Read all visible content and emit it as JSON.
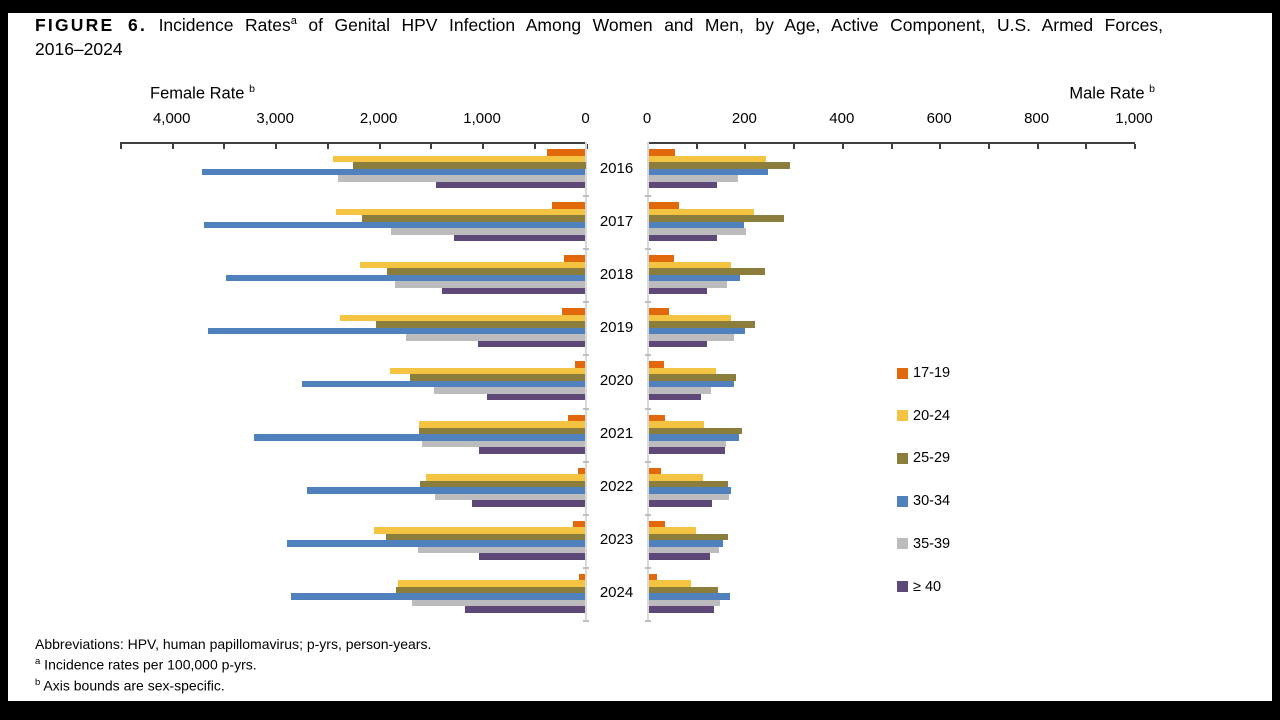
{
  "title": {
    "figure_label": "FIGURE 6.",
    "lead": " Incidence Rates",
    "sup_a": "a",
    "rest": " of Genital HPV Infection Among Women and Men, by Age, Active Component, U.S. Armed Forces,",
    "line2": "2016–2024"
  },
  "axes": {
    "female": {
      "label": "Female Rate",
      "sup": "b",
      "max": 4500,
      "tick_step": 500,
      "tick_labels": [
        "4,000",
        "3,000",
        "2,000",
        "1,000",
        "0"
      ],
      "tick_values": [
        4000,
        3000,
        2000,
        1000,
        0
      ]
    },
    "male": {
      "label": "Male Rate",
      "sup": "b",
      "max": 1000,
      "tick_step": 100,
      "tick_labels": [
        "0",
        "200",
        "400",
        "600",
        "800",
        "1,000"
      ],
      "tick_values": [
        0,
        200,
        400,
        600,
        800,
        1000
      ]
    }
  },
  "legend": {
    "items": [
      {
        "label": "17-19",
        "color": "#E2690B"
      },
      {
        "label": "20-24",
        "color": "#F5C342"
      },
      {
        "label": "25-29",
        "color": "#8B7D3B"
      },
      {
        "label": "30-34",
        "color": "#5081BD"
      },
      {
        "label": "35-39",
        "color": "#BCBCBE"
      },
      {
        "label": "≥ 40",
        "color": "#5D4877"
      }
    ]
  },
  "footnotes": {
    "abbreviations": "Abbreviations: HPV, human papillomavirus; p-yrs, person-years.",
    "note_a_marker": "a",
    "note_a": " Incidence rates per 100,000 p-yrs.",
    "note_b_marker": "b",
    "note_b": " Axis bounds are sex-specific."
  },
  "chart_data": {
    "type": "bar",
    "orientation": "horizontal-diverging",
    "title": "Incidence Rates of Genital HPV Infection Among Women and Men, by Age, Active Component, U.S. Armed Forces, 2016–2024",
    "units": "incidence rate per 100,000 p-yrs",
    "years": [
      "2016",
      "2017",
      "2018",
      "2019",
      "2020",
      "2021",
      "2022",
      "2023",
      "2024"
    ],
    "age_groups": [
      "17-19",
      "20-24",
      "25-29",
      "30-34",
      "35-39",
      "≥ 40"
    ],
    "legend_position": "right",
    "female": {
      "axis_label": "Female Rate",
      "xlim": [
        0,
        4500
      ],
      "series": [
        {
          "name": "17-19",
          "values": [
            370,
            320,
            210,
            225,
            105,
            165,
            75,
            125,
            60
          ]
        },
        {
          "name": "20-24",
          "values": [
            2440,
            2410,
            2180,
            2370,
            1890,
            1610,
            1540,
            2040,
            1810
          ]
        },
        {
          "name": "25-29",
          "values": [
            2250,
            2160,
            1920,
            2030,
            1700,
            1605,
            1600,
            1925,
            1830
          ]
        },
        {
          "name": "30-34",
          "values": [
            3710,
            3690,
            3480,
            3650,
            2740,
            3200,
            2695,
            2890,
            2850
          ]
        },
        {
          "name": "35-39",
          "values": [
            2390,
            1880,
            1840,
            1740,
            1460,
            1580,
            1455,
            1620,
            1680
          ]
        },
        {
          "name": "≥ 40",
          "values": [
            1450,
            1270,
            1390,
            1040,
            955,
            1025,
            1100,
            1025,
            1165
          ]
        }
      ]
    },
    "male": {
      "axis_label": "Male Rate",
      "xlim": [
        0,
        1000
      ],
      "series": [
        {
          "name": "17-19",
          "values": [
            55,
            63,
            52,
            43,
            32,
            34,
            25,
            34,
            17
          ]
        },
        {
          "name": "20-24",
          "values": [
            241,
            216,
            169,
            169,
            138,
            114,
            111,
            97,
            87
          ]
        },
        {
          "name": "25-29",
          "values": [
            291,
            279,
            240,
            219,
            179,
            193,
            164,
            164,
            142
          ]
        },
        {
          "name": "30-34",
          "values": [
            246,
            196,
            187,
            199,
            176,
            185,
            170,
            152,
            167
          ]
        },
        {
          "name": "35-39",
          "values": [
            183,
            201,
            161,
            176,
            128,
            159,
            166,
            144,
            146
          ]
        },
        {
          "name": "≥ 40",
          "values": [
            140,
            140,
            121,
            121,
            107,
            157,
            130,
            126,
            135
          ]
        }
      ]
    }
  }
}
